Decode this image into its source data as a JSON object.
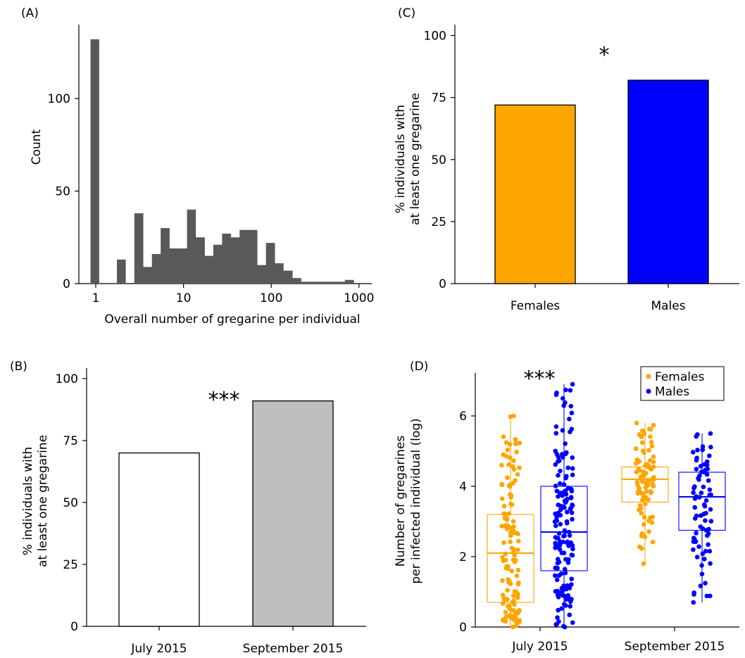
{
  "chart_data": [
    {
      "panel": "(A)",
      "type": "bar",
      "xscale": "log",
      "xlabel": "Overall number of gregarine per individual",
      "ylabel": "Count",
      "xticks": [
        "1",
        "10",
        "100",
        "1000"
      ],
      "yticks": [
        "0",
        "50",
        "100"
      ],
      "ylim": [
        0,
        133
      ],
      "color": "#595959",
      "bins_x": [
        1,
        1.25,
        1.58,
        2,
        2.51,
        3.16,
        3.98,
        5.01,
        6.31,
        7.94,
        10,
        12.6,
        15.8,
        20,
        25.1,
        31.6,
        39.8,
        50.1,
        63.1,
        79.4,
        100,
        126,
        158,
        200,
        251,
        316,
        398,
        501,
        631,
        794,
        1000
      ],
      "values": [
        132,
        0,
        0,
        13,
        0,
        38,
        9,
        16,
        30,
        19,
        19,
        40,
        25,
        15,
        21,
        27,
        25,
        29,
        29,
        10,
        22,
        11,
        7,
        3,
        1,
        1,
        1,
        1,
        1,
        2
      ]
    },
    {
      "panel": "(C)",
      "type": "bar",
      "categories": [
        "Females",
        "Males"
      ],
      "values": [
        72,
        82
      ],
      "colors": [
        "#FFA500",
        "#0000FF"
      ],
      "ylabel": "% individuals with at least one gregarine",
      "ylabel_lines": [
        "% individuals with",
        "at least one gregarine"
      ],
      "yticks": [
        "0",
        "25",
        "50",
        "75",
        "100"
      ],
      "ylim": [
        0,
        100
      ],
      "annotation": "*"
    },
    {
      "panel": "(B)",
      "type": "bar",
      "categories": [
        "July 2015",
        "September 2015"
      ],
      "values": [
        70,
        91
      ],
      "colors": [
        "#FFFFFF",
        "#BEBEBE"
      ],
      "ylabel": "% individuals with at least one gregarine",
      "ylabel_lines": [
        "% individuals with",
        "at least one gregarine"
      ],
      "yticks": [
        "0",
        "25",
        "50",
        "75",
        "100"
      ],
      "ylim": [
        0,
        100
      ],
      "annotation": "***"
    },
    {
      "panel": "(D)",
      "type": "scatter",
      "subtype": "box",
      "categories": [
        "July 2015",
        "September 2015"
      ],
      "ylabel": "Number of gregarines per infected individual (log)",
      "ylabel_lines": [
        "Number of gregarines",
        "per infected individual (log)"
      ],
      "yticks": [
        "0",
        "2",
        "4",
        "6"
      ],
      "ylim": [
        0,
        7.1
      ],
      "annotation": "***",
      "legend": {
        "position": "top-right",
        "entries": [
          "Females",
          "Males"
        ]
      },
      "series": [
        {
          "name": "Females",
          "color": "#FFA500",
          "boxes": [
            {
              "category": "July 2015",
              "min": 0,
              "q1": 0.7,
              "median": 2.1,
              "q3": 3.2,
              "max": 6.0,
              "n": 130
            },
            {
              "category": "September 2015",
              "min": 1.8,
              "q1": 3.55,
              "median": 4.2,
              "q3": 4.55,
              "max": 5.8,
              "n": 90
            }
          ]
        },
        {
          "name": "Males",
          "color": "#0000FF",
          "boxes": [
            {
              "category": "July 2015",
              "min": 0,
              "q1": 1.6,
              "median": 2.7,
              "q3": 4.0,
              "max": 6.9,
              "n": 160
            },
            {
              "category": "September 2015",
              "min": 0.7,
              "q1": 2.75,
              "median": 3.7,
              "q3": 4.4,
              "max": 5.5,
              "n": 80
            }
          ]
        }
      ]
    }
  ]
}
